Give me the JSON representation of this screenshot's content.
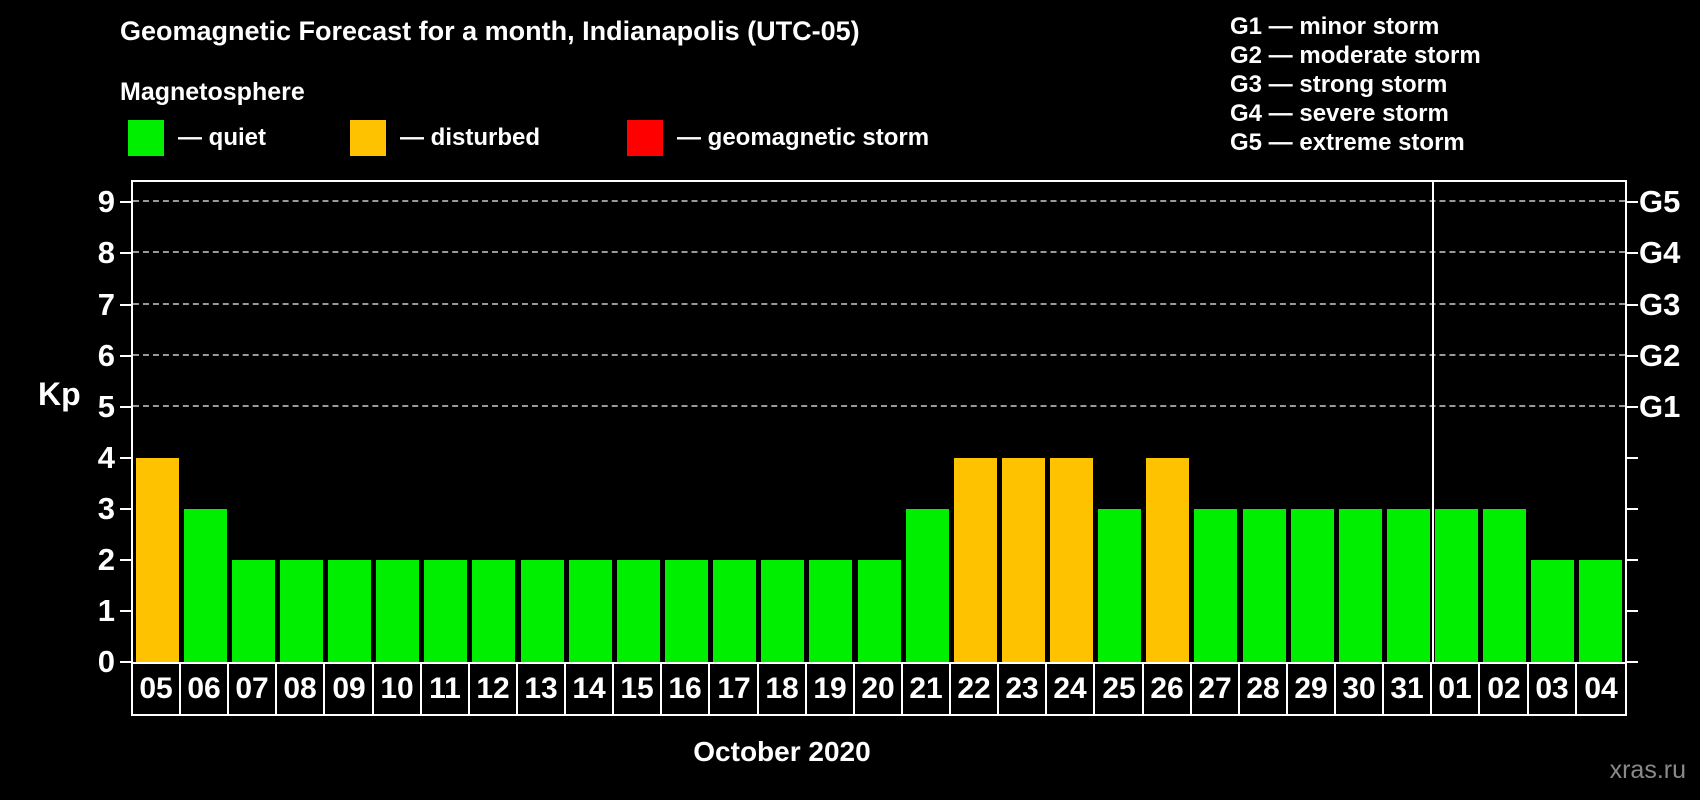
{
  "header": {
    "title": "Geomagnetic Forecast for a month, Indianapolis (UTC-05)",
    "subtitle": "Magnetosphere"
  },
  "kp_legend": [
    {
      "label": "— quiet",
      "status": "quiet",
      "color": "#00ee00"
    },
    {
      "label": "— disturbed",
      "status": "disturbed",
      "color": "#ffc200"
    },
    {
      "label": "— geomagnetic storm",
      "status": "storm",
      "color": "#ff0000"
    }
  ],
  "g_legend": [
    "G1 — minor storm",
    "G2 — moderate storm",
    "G3 — strong storm",
    "G4 — severe storm",
    "G5 — extreme storm"
  ],
  "watermark": "xras.ru",
  "chart_data": {
    "type": "bar",
    "title": "Geomagnetic Forecast for a month, Indianapolis (UTC-05)",
    "xlabel": "",
    "ylabel": "Kp",
    "ylim": [
      0,
      9.4
    ],
    "yticks": [
      0,
      1,
      2,
      3,
      4,
      5,
      6,
      7,
      8,
      9
    ],
    "gridlines_at": [
      5,
      6,
      7,
      8,
      9
    ],
    "grid": "dashed-horizontal",
    "legend_position": "top-left",
    "right_axis_labels": [
      {
        "label": "G1",
        "kp": 5
      },
      {
        "label": "G2",
        "kp": 6
      },
      {
        "label": "G3",
        "kp": 7
      },
      {
        "label": "G4",
        "kp": 8
      },
      {
        "label": "G5",
        "kp": 9
      }
    ],
    "categories": [
      "05",
      "06",
      "07",
      "08",
      "09",
      "10",
      "11",
      "12",
      "13",
      "14",
      "15",
      "16",
      "17",
      "18",
      "19",
      "20",
      "21",
      "22",
      "23",
      "24",
      "25",
      "26",
      "27",
      "28",
      "29",
      "30",
      "31",
      "01",
      "02",
      "03",
      "04"
    ],
    "values": [
      4,
      3,
      2,
      2,
      2,
      2,
      2,
      2,
      2,
      2,
      2,
      2,
      2,
      2,
      2,
      2,
      3,
      4,
      4,
      4,
      3,
      4,
      3,
      3,
      3,
      3,
      3,
      3,
      3,
      2,
      2
    ],
    "statuses": [
      "disturbed",
      "quiet",
      "quiet",
      "quiet",
      "quiet",
      "quiet",
      "quiet",
      "quiet",
      "quiet",
      "quiet",
      "quiet",
      "quiet",
      "quiet",
      "quiet",
      "quiet",
      "quiet",
      "quiet",
      "disturbed",
      "disturbed",
      "disturbed",
      "quiet",
      "disturbed",
      "quiet",
      "quiet",
      "quiet",
      "quiet",
      "quiet",
      "quiet",
      "quiet",
      "quiet",
      "quiet"
    ],
    "colors": {
      "quiet": "#00ee00",
      "disturbed": "#ffc200",
      "storm": "#ff0000"
    },
    "x_axis": {
      "month_label": "October 2020",
      "month_boundary_after_index": 26
    }
  }
}
